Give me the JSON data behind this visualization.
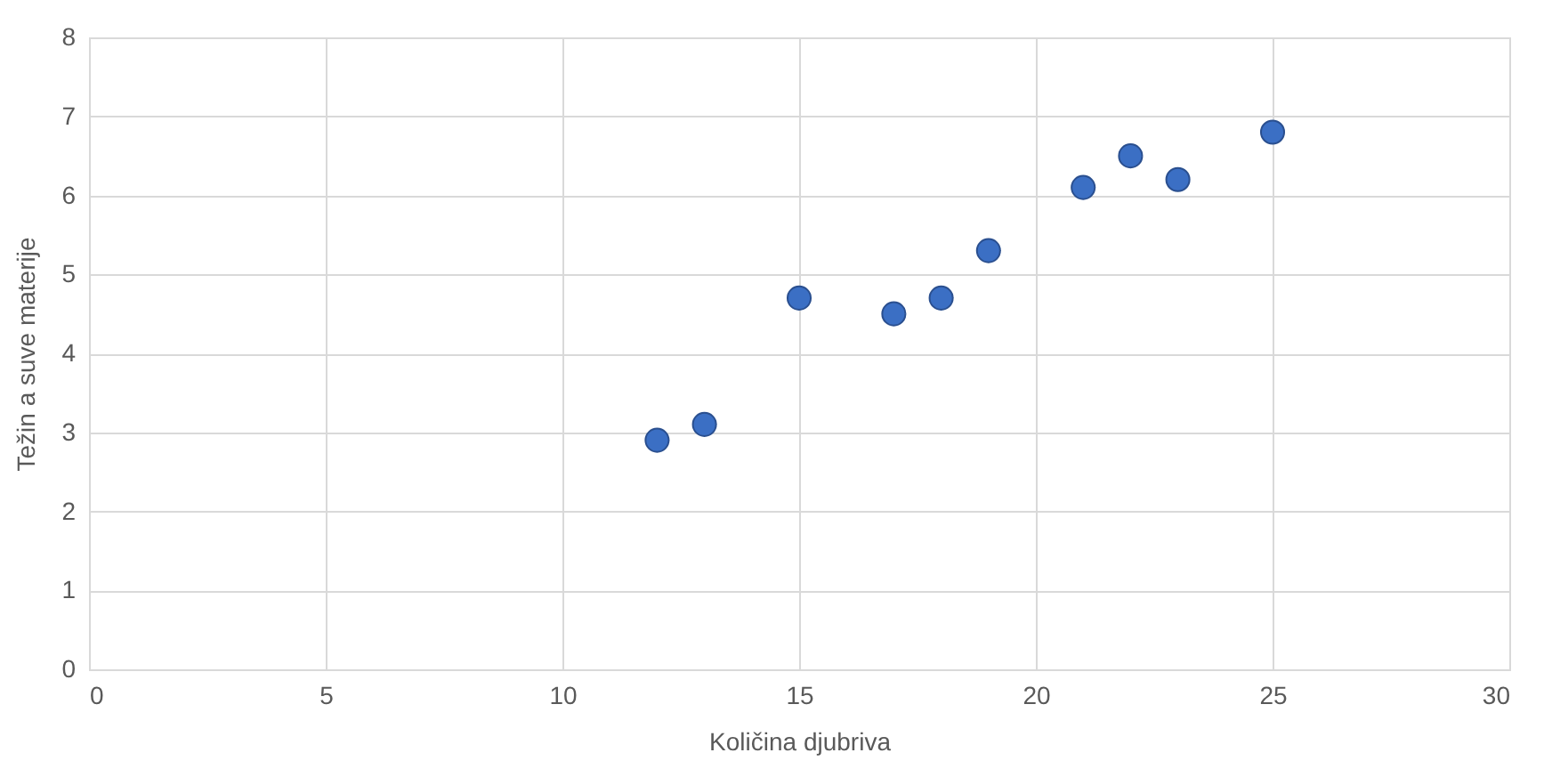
{
  "chart_data": {
    "type": "scatter",
    "xlabel": "Količina djubriva",
    "ylabel": "Težin a suve materije",
    "x": [
      12,
      13,
      15,
      17,
      18,
      19,
      21,
      22,
      23,
      25
    ],
    "series": [
      {
        "color": "#3b6fc4",
        "values": [
          2.9,
          3.1,
          4.7,
          4.5,
          4.7,
          5.3,
          6.1,
          6.5,
          6.2,
          6.8
        ]
      }
    ],
    "xlim": [
      0,
      30
    ],
    "xticks": [
      0,
      5,
      10,
      15,
      20,
      25,
      30
    ],
    "ylim": [
      0,
      8
    ],
    "yticks": [
      0,
      1,
      2,
      3,
      4,
      5,
      6,
      7,
      8
    ],
    "grid": true,
    "marker": "circle"
  }
}
